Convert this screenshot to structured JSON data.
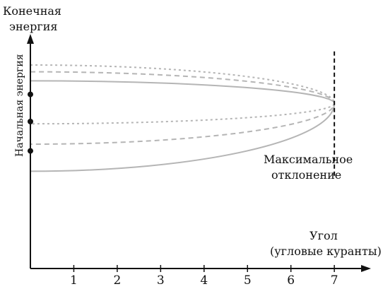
{
  "chart_data": {
    "type": "line",
    "y_axis_title_lines": [
      "Конечная",
      "энергия"
    ],
    "y_side_label": "Начальная энергия",
    "x_axis_title_lines": [
      "Угол",
      "(угловые куранты)"
    ],
    "annotation_lines": [
      "Максимальное",
      "отклонение"
    ],
    "x_ticks": [
      "1",
      "2",
      "3",
      "4",
      "5",
      "6",
      "7"
    ],
    "xlim": [
      0,
      7.6
    ],
    "ylim": [
      0,
      1
    ],
    "max_deflection_x": 7,
    "series": [
      {
        "style": "dotted",
        "upper": 0.9,
        "lower": 0.64,
        "start_marker": false
      },
      {
        "style": "dashed",
        "upper": 0.87,
        "lower": 0.55,
        "start_marker": false
      },
      {
        "style": "solid",
        "upper": 0.83,
        "lower": 0.43,
        "start_marker": false
      }
    ],
    "markers": [
      {
        "y": 0.77
      },
      {
        "y": 0.65
      },
      {
        "y": 0.52
      }
    ],
    "colors": {
      "axis": "#111111",
      "curves": "#b5b5b5",
      "markers": "#111111"
    }
  }
}
